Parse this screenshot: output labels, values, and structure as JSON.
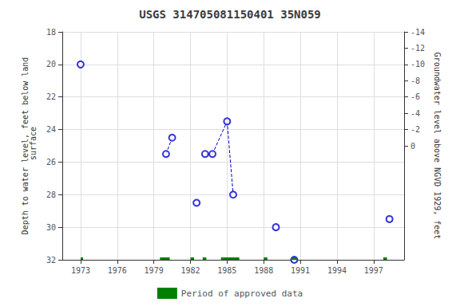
{
  "chart_data": {
    "type": "scatter",
    "title": "USGS 314705081150401 35N059",
    "ylabel": "Depth to water level, feet below land\n surface",
    "y2label": "Groundwater level above NGVD 1929, feet",
    "xlim": [
      1971.5,
      1999.5
    ],
    "xticks": [
      1973,
      1976,
      1979,
      1982,
      1985,
      1988,
      1991,
      1994,
      1997
    ],
    "ylim": [
      32,
      18
    ],
    "yticks": [
      18,
      20,
      22,
      24,
      26,
      28,
      30,
      32
    ],
    "y2lim": [
      14,
      -14
    ],
    "y2ticks": [
      0,
      -2,
      -4,
      -6,
      -8,
      -10,
      -12,
      -14
    ],
    "grid": true,
    "legend": "bottom",
    "series": [
      {
        "type": "scatter",
        "marker": "o",
        "color": "#0000cc",
        "x": [
          1973.0,
          1980.0,
          1980.5,
          1982.5,
          1983.2,
          1983.8,
          1985.0,
          1985.5,
          1989.0,
          1990.5,
          1998.3
        ],
        "values": [
          20.0,
          25.5,
          24.5,
          28.5,
          25.5,
          25.5,
          23.5,
          28.0,
          30.0,
          32.0,
          29.5
        ]
      },
      {
        "type": "line",
        "line_style": "dashed",
        "color": "#0000cc",
        "segments": [
          {
            "x": [
              1980.0,
              1980.5
            ],
            "values": [
              25.5,
              24.5
            ]
          },
          {
            "x": [
              1983.2,
              1983.8
            ],
            "values": [
              25.5,
              25.5
            ]
          },
          {
            "x": [
              1983.8,
              1985.0
            ],
            "values": [
              25.5,
              23.5
            ]
          },
          {
            "x": [
              1985.0,
              1985.5
            ],
            "values": [
              23.5,
              28.0
            ]
          }
        ]
      },
      {
        "type": "bar",
        "orientation": "horizontal",
        "name": "Period of approved data",
        "color": "#008000",
        "y": 32.0,
        "start": [
          1973.0,
          1979.5,
          1982.0,
          1983.0,
          1984.5,
          1988.0,
          1990.3,
          1997.8
        ],
        "end": [
          1973.2,
          1980.3,
          1982.3,
          1983.3,
          1986.0,
          1988.3,
          1990.7,
          1998.1
        ]
      }
    ]
  }
}
